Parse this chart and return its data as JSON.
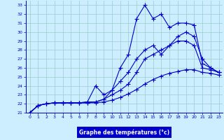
{
  "title": "Graphe des températures (°c)",
  "bg_color": "#cceeff",
  "grid_color": "#99cccc",
  "line_color": "#0000cc",
  "label_bg": "#0000cc",
  "label_fg": "#ffffff",
  "xlim": [
    -0.5,
    23.5
  ],
  "ylim": [
    21,
    33.5
  ],
  "xticks": [
    0,
    1,
    2,
    3,
    4,
    5,
    6,
    7,
    8,
    9,
    10,
    11,
    12,
    13,
    14,
    15,
    16,
    17,
    18,
    19,
    20,
    21,
    22,
    23
  ],
  "yticks": [
    21,
    22,
    23,
    24,
    25,
    26,
    27,
    28,
    29,
    30,
    31,
    32,
    33
  ],
  "series1": {
    "x": [
      0,
      1,
      2,
      3,
      4,
      5,
      6,
      7,
      8,
      9,
      10,
      11,
      12,
      13,
      14,
      15,
      16,
      17,
      18,
      19,
      20,
      21,
      22,
      23
    ],
    "y": [
      21.0,
      21.8,
      22.0,
      22.1,
      22.1,
      22.1,
      22.1,
      22.1,
      22.1,
      22.2,
      22.4,
      22.7,
      23.1,
      23.6,
      24.2,
      24.7,
      25.1,
      25.4,
      25.6,
      25.8,
      25.8,
      25.5,
      25.4,
      25.2
    ]
  },
  "series2": {
    "x": [
      0,
      1,
      2,
      3,
      4,
      5,
      6,
      7,
      8,
      9,
      10,
      11,
      12,
      13,
      14,
      15,
      16,
      17,
      18,
      19,
      20,
      21,
      22,
      23
    ],
    "y": [
      21.0,
      21.8,
      22.0,
      22.1,
      22.1,
      22.1,
      22.1,
      22.1,
      22.2,
      22.5,
      23.0,
      23.5,
      24.2,
      25.5,
      27.0,
      27.5,
      28.0,
      28.5,
      29.0,
      29.0,
      28.5,
      26.0,
      25.8,
      25.5
    ]
  },
  "series3": {
    "x": [
      0,
      1,
      2,
      3,
      4,
      5,
      6,
      7,
      8,
      9,
      10,
      11,
      12,
      13,
      14,
      15,
      16,
      17,
      18,
      19,
      20,
      21,
      22,
      23
    ],
    "y": [
      21.0,
      21.8,
      22.0,
      22.1,
      22.1,
      22.1,
      22.1,
      22.2,
      22.2,
      22.5,
      23.5,
      26.0,
      27.5,
      31.5,
      33.0,
      31.5,
      32.0,
      30.5,
      31.0,
      31.0,
      30.8,
      26.5,
      26.0,
      25.5
    ]
  },
  "series4": {
    "x": [
      0,
      1,
      2,
      3,
      4,
      5,
      6,
      7,
      8,
      9,
      10,
      11,
      12,
      13,
      14,
      15,
      16,
      17,
      18,
      19,
      20,
      21,
      22,
      23
    ],
    "y": [
      21.0,
      21.8,
      22.0,
      22.1,
      22.1,
      22.1,
      22.1,
      22.2,
      24.0,
      23.0,
      23.5,
      24.5,
      25.5,
      27.0,
      28.0,
      28.5,
      27.5,
      28.5,
      29.5,
      30.0,
      29.5,
      27.0,
      26.0,
      25.5
    ]
  }
}
